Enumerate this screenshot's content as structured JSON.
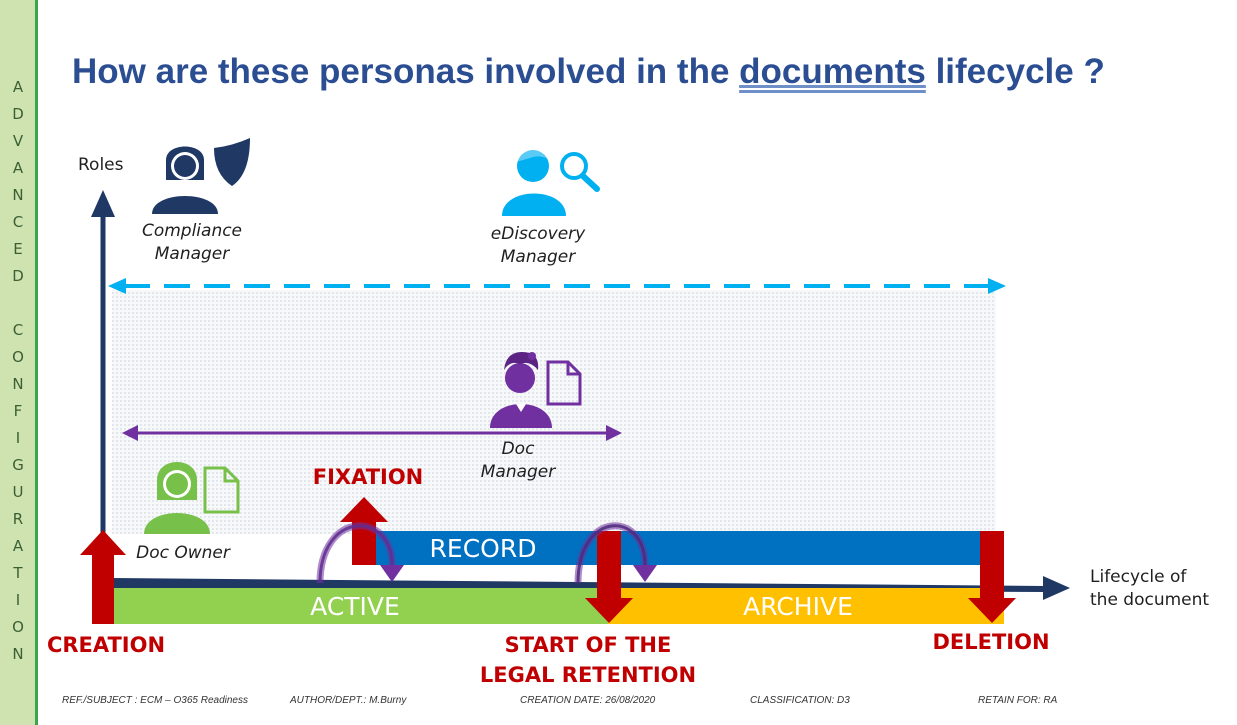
{
  "sidebar": {
    "text": "ADVANCED CONFIGURATION"
  },
  "title": {
    "prefix": "How are these personas involved in the ",
    "underlined": "documents",
    "suffix": " lifecycle ?"
  },
  "axes": {
    "y_label": "Roles",
    "x_label_line1": "Lifecycle of",
    "x_label_line2": "the document"
  },
  "personas": {
    "compliance": {
      "line1": "Compliance",
      "line2": "Manager",
      "icon": "compliance-manager-icon"
    },
    "ediscovery": {
      "line1": "eDiscovery",
      "line2": "Manager",
      "icon": "ediscovery-manager-icon"
    },
    "doc_manager": {
      "line1": "Doc",
      "line2": "Manager",
      "icon": "doc-manager-icon"
    },
    "doc_owner": {
      "line1": "Doc Owner",
      "icon": "doc-owner-icon"
    }
  },
  "phases": {
    "active": "ACTIVE",
    "record": "RECORD",
    "archive": "ARCHIVE"
  },
  "milestones": {
    "creation": "CREATION",
    "fixation": "FIXATION",
    "legal_line1": "START OF THE",
    "legal_line2": "LEGAL RETENTION",
    "deletion": "DELETION"
  },
  "footer": {
    "ref": "REF./SUBJECT : ECM – O365 Readiness",
    "author": "AUTHOR/DEPT.: M.Burny",
    "date": "CREATION DATE: 26/08/2020",
    "classification": "CLASSIFICATION: D3",
    "retain": "RETAIN FOR: RA"
  },
  "colors": {
    "navy": "#1f3864",
    "cyan": "#00b0f0",
    "purple": "#7030a0",
    "green": "#92d050",
    "green_icon": "#77c14a",
    "blue_bar": "#0070c0",
    "orange": "#ffc000",
    "red": "#c00000"
  }
}
